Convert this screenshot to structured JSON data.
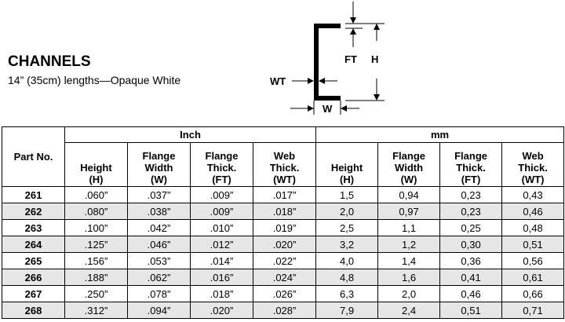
{
  "header": {
    "title": "CHANNELS",
    "subtitle": "14” (35cm) lengths—Opaque White"
  },
  "diagram": {
    "wt": "WT",
    "ft": "FT",
    "h": "H",
    "w": "W"
  },
  "table": {
    "part_header": "Part No.",
    "groups": [
      "Inch",
      "mm"
    ],
    "columns": [
      "Height\n(H)",
      "Flange\nWidth\n(W)",
      "Flange\nThick.\n(FT)",
      "Web\nThick.\n(WT)",
      "Height\n(H)",
      "Flange\nWidth\n(W)",
      "Flange\nThick.\n(FT)",
      "Web\nThick.\n(WT)"
    ],
    "rows": [
      [
        "261",
        ".060”",
        ".037”",
        ".009”",
        ".017”",
        "1,5",
        "0,94",
        "0,23",
        "0,43"
      ],
      [
        "262",
        ".080”",
        ".038”",
        ".009”",
        ".018”",
        "2,0",
        "0,97",
        "0,23",
        "0,46"
      ],
      [
        "263",
        ".100”",
        ".042”",
        ".010”",
        ".019”",
        "2,5",
        "1,1",
        "0,25",
        "0,48"
      ],
      [
        "264",
        ".125”",
        ".046”",
        ".012”",
        ".020”",
        "3,2",
        "1,2",
        "0,30",
        "0,51"
      ],
      [
        "265",
        ".156”",
        ".053”",
        ".014”",
        ".022”",
        "4,0",
        "1,4",
        "0,36",
        "0,56"
      ],
      [
        "266",
        ".188”",
        ".062”",
        ".016”",
        ".024”",
        "4,8",
        "1,6",
        "0,41",
        "0,61"
      ],
      [
        "267",
        ".250”",
        ".078”",
        ".018”",
        ".026”",
        "6,3",
        "2,0",
        "0,46",
        "0,66"
      ],
      [
        "268",
        ".312”",
        ".094”",
        ".020”",
        ".028”",
        "7,9",
        "2,4",
        "0,51",
        "0,71"
      ]
    ]
  }
}
